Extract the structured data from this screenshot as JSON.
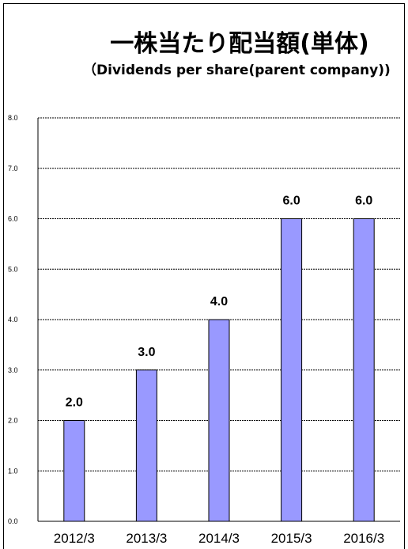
{
  "chart_data": {
    "type": "bar",
    "title": "一株当たり配当額(単体)",
    "subtitle": "（Dividends per share(parent company))",
    "categories": [
      "2012/3",
      "2013/3",
      "2014/3",
      "2015/3",
      "2016/3"
    ],
    "values": [
      2.0,
      3.0,
      4.0,
      6.0,
      6.0
    ],
    "data_labels": [
      "2.0",
      "3.0",
      "4.0",
      "6.0",
      "6.0"
    ],
    "yticks": [
      "0.0",
      "1.0",
      "2.0",
      "3.0",
      "4.0",
      "5.0",
      "6.0",
      "7.0",
      "8.0"
    ],
    "ylim": [
      0,
      8
    ],
    "grid": true,
    "bar_color": "#9999ff",
    "xlabel": "",
    "ylabel": ""
  }
}
